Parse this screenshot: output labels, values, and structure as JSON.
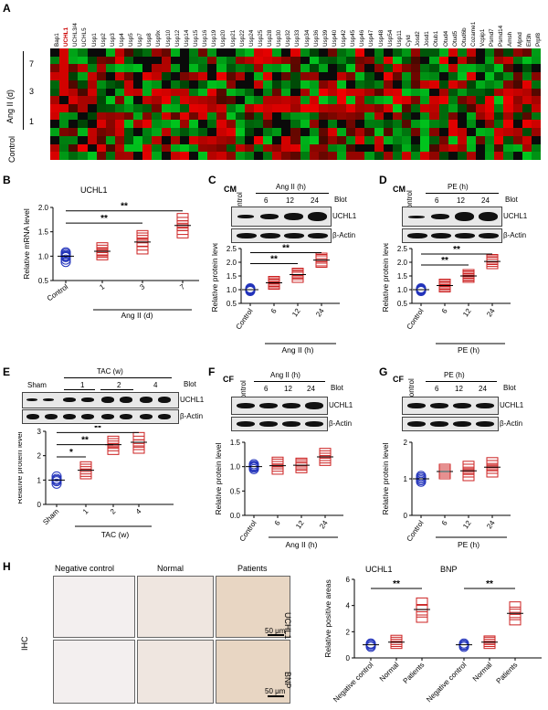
{
  "panels": {
    "A": {
      "label": "A",
      "genes": [
        "Bap1",
        "UCHL1",
        "UCHL3/4",
        "UCHL5",
        "Usp1",
        "Usp2",
        "Usp3",
        "Usp4",
        "Usp5",
        "Usp7",
        "Usp8",
        "Usp9x",
        "Usp10",
        "Usp12",
        "Usp14",
        "Usp15",
        "Usp16",
        "Usp19",
        "Usp20",
        "Usp21",
        "Usp22",
        "Usp24",
        "Usp25",
        "Usp28",
        "Usp30",
        "Usp32",
        "Usp33",
        "Usp34",
        "Usp36",
        "Usp39",
        "Usp40",
        "Usp42",
        "Usp45",
        "Usp46",
        "Usp47",
        "Usp48",
        "Usp54",
        "Usp11",
        "Cyld",
        "Josd2",
        "Josd1",
        "Otub1",
        "Otud4",
        "Otud5",
        "Otud6b",
        "Cozarne1",
        "Vcpip1",
        "Psmd7",
        "Psmd14",
        "Amsh",
        "Mpnd",
        "Eif3h",
        "Prpf8"
      ],
      "highlight_gene": "UCHL1",
      "highlight_color": "#cc0000",
      "row_labels": [
        "7",
        "3",
        "1",
        "Control"
      ],
      "group_label": "Ang II (d)"
    },
    "B": {
      "label": "B",
      "title": "UCHL1",
      "ylabel": "Relative mRNA level",
      "xlabel": "Ang II (d)",
      "sig": [
        "**",
        "**"
      ]
    },
    "C": {
      "label": "C",
      "cell": "CM",
      "header": "Ang II (h)",
      "blot_word": "Blot",
      "lanes": [
        "Control",
        "6",
        "12",
        "24"
      ],
      "rows": [
        "UCHL1",
        "β-Actin"
      ],
      "ylabel": "Relative protein level",
      "xlabel": "Ang II (h)",
      "sig": [
        "**",
        "**"
      ]
    },
    "D": {
      "label": "D",
      "cell": "CM",
      "header": "PE (h)",
      "blot_word": "Blot",
      "lanes": [
        "Control",
        "6",
        "12",
        "24"
      ],
      "rows": [
        "UCHL1",
        "β-Actin"
      ],
      "ylabel": "Relative protein level",
      "xlabel": "PE (h)",
      "sig": [
        "**",
        "**"
      ]
    },
    "E": {
      "label": "E",
      "header": "TAC (w)",
      "blot_word": "Blot",
      "lanes": [
        "Sham",
        "1",
        "2",
        "4"
      ],
      "rows": [
        "UCHL1",
        "β-Actin"
      ],
      "ylabel": "Relative protein level",
      "xlabel": "TAC (w)",
      "sig": [
        "*",
        "**",
        "**"
      ]
    },
    "F": {
      "label": "F",
      "cell": "CF",
      "header": "Ang II (h)",
      "blot_word": "Blot",
      "lanes": [
        "Control",
        "6",
        "12",
        "24"
      ],
      "rows": [
        "UCHL1",
        "β-Actin"
      ],
      "ylabel": "Relative protein level",
      "xlabel": "Ang II (h)"
    },
    "G": {
      "label": "G",
      "cell": "CF",
      "header": "PE (h)",
      "blot_word": "Blot",
      "lanes": [
        "Control",
        "6",
        "12",
        "24"
      ],
      "rows": [
        "UCHL1",
        "β-Actin"
      ],
      "ylabel": "Relative protein level",
      "xlabel": "PE (h)"
    },
    "H": {
      "label": "H",
      "columns": [
        "Negative control",
        "Normal",
        "Patients"
      ],
      "row_labels": [
        "UCHL1",
        "BNP"
      ],
      "side_label": "IHC",
      "scale": "50 μm",
      "ylabel": "Relative positive areas",
      "groups": [
        "UCHL1",
        "BNP"
      ],
      "sig": [
        "**",
        "**"
      ]
    }
  },
  "chart_data": [
    {
      "id": "B",
      "type": "scatter",
      "xlabel": "Ang II (d)",
      "ylabel": "Relative mRNA level",
      "categories": [
        "Control",
        "1",
        "3",
        "7"
      ],
      "ylim": [
        0.5,
        2.0
      ],
      "yticks": [
        0.5,
        1.0,
        1.5,
        2.0
      ],
      "series": [
        {
          "values": [
            [
              0.88,
              0.93,
              0.98,
              1.0,
              1.02,
              1.05,
              1.08
            ],
            [
              1.0,
              1.05,
              1.08,
              1.1,
              1.15,
              1.2
            ],
            [
              1.12,
              1.2,
              1.28,
              1.35,
              1.4,
              1.45
            ],
            [
              1.45,
              1.52,
              1.6,
              1.65,
              1.72,
              1.8
            ]
          ],
          "means": [
            1.0,
            1.1,
            1.29,
            1.63
          ]
        }
      ],
      "colors": [
        "#2233bb",
        "#cc2222",
        "#cc2222",
        "#cc2222"
      ],
      "brackets": [
        {
          "from": 0,
          "to": 2,
          "y": 1.68,
          "text": "**"
        },
        {
          "from": 0,
          "to": 3,
          "y": 1.93,
          "text": "**"
        }
      ]
    },
    {
      "id": "C",
      "type": "scatter",
      "xlabel": "Ang II (h)",
      "ylabel": "Relative protein level",
      "categories": [
        "Control",
        "6",
        "12",
        "24"
      ],
      "ylim": [
        0.5,
        2.5
      ],
      "yticks": [
        0.5,
        1.0,
        1.5,
        2.0,
        2.5
      ],
      "series": [
        {
          "values": [
            [
              0.95,
              0.98,
              1.0,
              1.02,
              1.05
            ],
            [
              1.15,
              1.2,
              1.25,
              1.3,
              1.35
            ],
            [
              1.4,
              1.5,
              1.55,
              1.6,
              1.65
            ],
            [
              1.95,
              2.0,
              2.1,
              2.15,
              2.2
            ]
          ],
          "means": [
            1.0,
            1.25,
            1.55,
            2.08
          ]
        }
      ],
      "colors": [
        "#2233bb",
        "#cc2222",
        "#cc2222",
        "#cc2222"
      ],
      "brackets": [
        {
          "from": 0,
          "to": 2,
          "y": 1.95,
          "text": "**"
        },
        {
          "from": 0,
          "to": 3,
          "y": 2.35,
          "text": "**"
        }
      ]
    },
    {
      "id": "D",
      "type": "scatter",
      "xlabel": "PE (h)",
      "ylabel": "Relative protein level",
      "categories": [
        "Control",
        "6",
        "12",
        "24"
      ],
      "ylim": [
        0.5,
        2.5
      ],
      "yticks": [
        0.5,
        1.0,
        1.5,
        2.0,
        2.5
      ],
      "series": [
        {
          "values": [
            [
              0.95,
              0.98,
              1.0,
              1.02,
              1.05
            ],
            [
              1.05,
              1.1,
              1.15,
              1.2,
              1.25
            ],
            [
              1.4,
              1.45,
              1.5,
              1.55,
              1.6
            ],
            [
              1.9,
              1.98,
              2.05,
              2.1,
              2.15
            ]
          ],
          "means": [
            1.0,
            1.15,
            1.5,
            2.03
          ]
        }
      ],
      "colors": [
        "#2233bb",
        "#cc2222",
        "#cc2222",
        "#cc2222"
      ],
      "brackets": [
        {
          "from": 0,
          "to": 2,
          "y": 1.9,
          "text": "**"
        },
        {
          "from": 0,
          "to": 3,
          "y": 2.3,
          "text": "**"
        }
      ]
    },
    {
      "id": "E",
      "type": "scatter",
      "xlabel": "TAC (w)",
      "ylabel": "Relative protein level",
      "categories": [
        "Sham",
        "1",
        "2",
        "4"
      ],
      "ylim": [
        0,
        3
      ],
      "yticks": [
        0,
        1,
        2,
        3
      ],
      "series": [
        {
          "values": [
            [
              0.85,
              0.95,
              1.0,
              1.05,
              1.15
            ],
            [
              1.2,
              1.3,
              1.4,
              1.5,
              1.6
            ],
            [
              2.2,
              2.35,
              2.45,
              2.55,
              2.65
            ],
            [
              2.25,
              2.4,
              2.5,
              2.65,
              2.8
            ]
          ],
          "means": [
            1.0,
            1.4,
            2.45,
            2.55
          ]
        }
      ],
      "colors": [
        "#2233bb",
        "#cc2222",
        "#cc2222",
        "#cc2222"
      ],
      "brackets": [
        {
          "from": 0,
          "to": 1,
          "y": 1.95,
          "text": "*"
        },
        {
          "from": 0,
          "to": 2,
          "y": 2.45,
          "text": "**"
        },
        {
          "from": 0,
          "to": 3,
          "y": 2.95,
          "text": "**"
        }
      ]
    },
    {
      "id": "F",
      "type": "scatter",
      "xlabel": "Ang II (h)",
      "ylabel": "Relative protein level",
      "categories": [
        "Control",
        "6",
        "12",
        "24"
      ],
      "ylim": [
        0,
        1.5
      ],
      "yticks": [
        0,
        0.5,
        1.0,
        1.5
      ],
      "series": [
        {
          "values": [
            [
              0.95,
              0.98,
              1.0,
              1.02,
              1.05
            ],
            [
              0.92,
              0.98,
              1.03,
              1.08,
              1.12
            ],
            [
              0.95,
              1.0,
              1.03,
              1.07,
              1.1
            ],
            [
              1.1,
              1.15,
              1.2,
              1.25,
              1.3
            ]
          ],
          "means": [
            1.0,
            1.02,
            1.03,
            1.2
          ]
        }
      ],
      "colors": [
        "#2233bb",
        "#cc2222",
        "#cc2222",
        "#cc2222"
      ]
    },
    {
      "id": "G",
      "type": "scatter",
      "xlabel": "PE (h)",
      "ylabel": "Relative protein level",
      "categories": [
        "Control",
        "6",
        "12",
        "24"
      ],
      "ylim": [
        0,
        2
      ],
      "yticks": [
        0,
        1,
        2
      ],
      "series": [
        {
          "values": [
            [
              0.92,
              0.96,
              1.0,
              1.04,
              1.08
            ],
            [
              1.1,
              1.15,
              1.2,
              1.25,
              1.3
            ],
            [
              1.05,
              1.15,
              1.22,
              1.3,
              1.38
            ],
            [
              1.15,
              1.25,
              1.32,
              1.4,
              1.48
            ]
          ],
          "means": [
            1.0,
            1.2,
            1.22,
            1.32
          ]
        }
      ],
      "colors": [
        "#2233bb",
        "#cc2222",
        "#cc2222",
        "#cc2222"
      ]
    },
    {
      "id": "H",
      "type": "scatter",
      "ylabel": "Relative positive areas",
      "categories": [
        "Negative control",
        "Normal",
        "Patients",
        "Negative control",
        "Normal",
        "Patients"
      ],
      "groups": [
        "UCHL1",
        "BNP"
      ],
      "ylim": [
        0,
        6
      ],
      "yticks": [
        0,
        2,
        4,
        6
      ],
      "series": [
        {
          "values": [
            [
              0.85,
              0.95,
              1.05,
              1.1
            ],
            [
              1.0,
              1.15,
              1.3,
              1.45
            ],
            [
              3.0,
              3.4,
              3.8,
              4.3
            ],
            [
              0.85,
              0.95,
              1.0,
              1.1
            ],
            [
              1.0,
              1.15,
              1.3,
              1.4
            ],
            [
              2.8,
              3.2,
              3.6,
              4.0
            ]
          ],
          "means": [
            1.0,
            1.2,
            3.7,
            1.0,
            1.2,
            3.4
          ]
        }
      ],
      "colors": [
        "#2233bb",
        "#cc2222",
        "#cc2222",
        "#2233bb",
        "#cc2222",
        "#cc2222"
      ],
      "brackets": [
        {
          "from": 0,
          "to": 2,
          "y": 5.3,
          "text": "**"
        },
        {
          "from": 3,
          "to": 5,
          "y": 5.3,
          "text": "**"
        }
      ]
    }
  ]
}
